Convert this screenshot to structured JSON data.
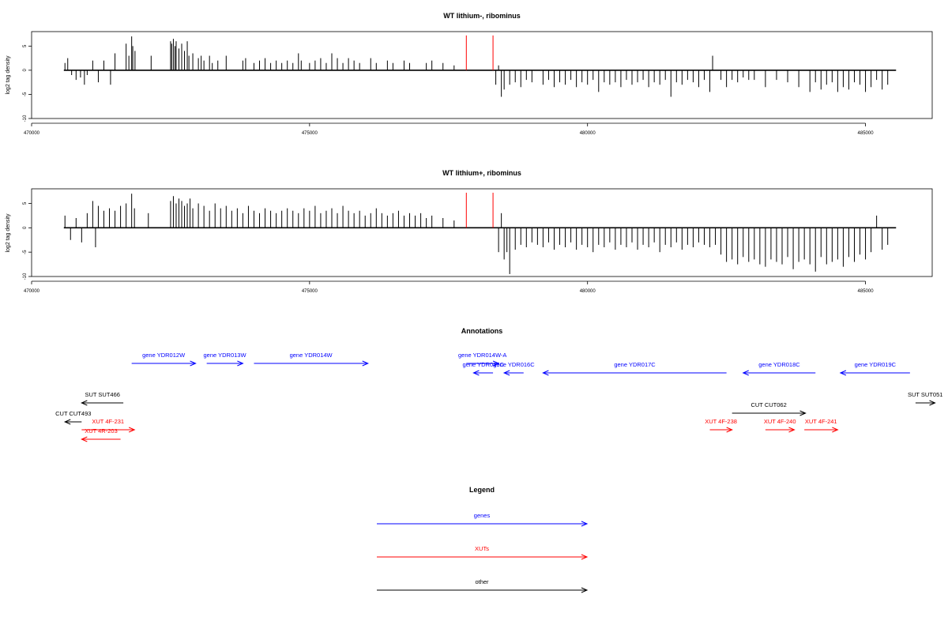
{
  "chart_data": [
    {
      "type": "bar",
      "title": "WT lithium-, ribominus",
      "ylabel": "log2 tag density",
      "ylim": [
        -10,
        8
      ],
      "xlim": [
        470000,
        486200
      ],
      "xticks": [
        470000,
        475000,
        480000,
        485000
      ],
      "yticks": [
        -10,
        -5,
        0,
        5
      ],
      "bar_color": "#000000",
      "highlight_color": "#ff0000",
      "highlight_x": [
        477820,
        478300
      ],
      "highlight_value": 7.2,
      "baseline": [
        470580,
        485550
      ],
      "x": [
        470600,
        470650,
        470720,
        470800,
        470880,
        470950,
        471000,
        471100,
        471200,
        471300,
        471420,
        471500,
        471700,
        471750,
        471800,
        471820,
        471860,
        472150,
        472500,
        472520,
        472550,
        472580,
        472600,
        472650,
        472700,
        472750,
        472800,
        472830,
        472900,
        473000,
        473050,
        473100,
        473200,
        473250,
        473350,
        473500,
        473800,
        473850,
        474000,
        474100,
        474200,
        474300,
        474400,
        474500,
        474600,
        474700,
        474800,
        474850,
        475000,
        475100,
        475200,
        475300,
        475400,
        475500,
        475600,
        475700,
        475800,
        475900,
        476100,
        476200,
        476400,
        476500,
        476700,
        476800,
        477100,
        477200,
        477400,
        477600,
        478350,
        478400,
        478450,
        478500,
        478600,
        478700,
        478800,
        478900,
        479000,
        479200,
        479300,
        479400,
        479500,
        479600,
        479700,
        479800,
        479900,
        480000,
        480100,
        480200,
        480300,
        480400,
        480500,
        480600,
        480700,
        480800,
        480900,
        481000,
        481100,
        481200,
        481300,
        481400,
        481500,
        481600,
        481700,
        481800,
        481900,
        482000,
        482100,
        482200,
        482250,
        482400,
        482500,
        482600,
        482700,
        482800,
        482900,
        483000,
        483200,
        483400,
        483600,
        483800,
        484000,
        484100,
        484200,
        484300,
        484400,
        484500,
        484600,
        484700,
        484800,
        484900,
        485000,
        485100,
        485200,
        485300,
        485400
      ],
      "values": [
        1.5,
        2.5,
        -1.0,
        -2.0,
        -1.5,
        -3.0,
        -1.0,
        2.0,
        -2.5,
        2.0,
        -3.0,
        3.5,
        5.5,
        3.0,
        7.0,
        5.0,
        4.0,
        3.0,
        6.0,
        5.5,
        6.5,
        5.0,
        6.0,
        4.5,
        5.5,
        4.0,
        6.0,
        3.0,
        3.5,
        2.5,
        3.0,
        2.0,
        3.0,
        1.5,
        2.0,
        3.0,
        2.0,
        2.5,
        1.5,
        2.0,
        2.5,
        1.5,
        2.0,
        1.5,
        2.0,
        1.5,
        3.5,
        2.0,
        1.5,
        2.0,
        2.5,
        1.5,
        3.5,
        2.5,
        1.5,
        2.5,
        2.0,
        1.5,
        2.5,
        1.5,
        2.0,
        1.5,
        2.0,
        1.5,
        1.5,
        2.0,
        1.5,
        1.0,
        -3.0,
        1.0,
        -5.5,
        -4.0,
        -3.0,
        -2.5,
        -3.5,
        -2.0,
        -2.5,
        -3.0,
        -2.0,
        -3.5,
        -2.5,
        -3.0,
        -2.0,
        -3.5,
        -2.5,
        -3.0,
        -2.0,
        -4.5,
        -2.5,
        -3.0,
        -2.5,
        -3.5,
        -2.0,
        -3.0,
        -2.5,
        -2.0,
        -3.5,
        -2.5,
        -3.0,
        -2.0,
        -5.5,
        -2.5,
        -3.0,
        -2.0,
        -2.5,
        -3.5,
        -2.0,
        -4.5,
        3.0,
        -2.0,
        -3.5,
        -2.0,
        -2.5,
        -1.5,
        -2.0,
        -2.0,
        -3.5,
        -2.0,
        -2.5,
        -3.5,
        -4.5,
        -2.5,
        -4.0,
        -3.0,
        -2.5,
        -4.5,
        -3.5,
        -4.0,
        -2.5,
        -3.0,
        -4.5,
        -3.5,
        -2.0,
        -4.0,
        -3.0
      ]
    },
    {
      "type": "bar",
      "title": "WT lithium+, ribominus",
      "ylabel": "log2 tag density",
      "ylim": [
        -10,
        8
      ],
      "xlim": [
        470000,
        486200
      ],
      "xticks": [
        470000,
        475000,
        480000,
        485000
      ],
      "yticks": [
        -10,
        -5,
        0,
        5
      ],
      "bar_color": "#000000",
      "highlight_color": "#ff0000",
      "highlight_x": [
        477820,
        478300
      ],
      "highlight_value": 7.2,
      "baseline": [
        470580,
        485550
      ],
      "x": [
        470600,
        470700,
        470800,
        470900,
        471000,
        471100,
        471150,
        471200,
        471300,
        471400,
        471500,
        471600,
        471700,
        471800,
        471850,
        472100,
        472500,
        472550,
        472600,
        472650,
        472700,
        472750,
        472800,
        472850,
        472900,
        473000,
        473100,
        473200,
        473300,
        473400,
        473500,
        473600,
        473700,
        473800,
        473900,
        474000,
        474100,
        474200,
        474300,
        474400,
        474500,
        474600,
        474700,
        474800,
        474900,
        475000,
        475100,
        475200,
        475300,
        475400,
        475500,
        475600,
        475700,
        475800,
        475900,
        476000,
        476100,
        476200,
        476300,
        476400,
        476500,
        476600,
        476700,
        476800,
        476900,
        477000,
        477100,
        477200,
        477400,
        477600,
        478400,
        478450,
        478500,
        478550,
        478600,
        478700,
        478800,
        478900,
        479000,
        479100,
        479200,
        479300,
        479400,
        479500,
        479600,
        479700,
        479800,
        479900,
        480000,
        480100,
        480200,
        480300,
        480400,
        480500,
        480600,
        480700,
        480800,
        480900,
        481000,
        481100,
        481200,
        481300,
        481400,
        481500,
        481600,
        481700,
        481800,
        481900,
        482000,
        482100,
        482200,
        482300,
        482400,
        482500,
        482600,
        482700,
        482800,
        482900,
        483000,
        483100,
        483200,
        483300,
        483400,
        483500,
        483600,
        483700,
        483800,
        483900,
        484000,
        484100,
        484200,
        484300,
        484400,
        484500,
        484600,
        484700,
        484800,
        484900,
        485000,
        485100,
        485200,
        485300,
        485400
      ],
      "values": [
        2.5,
        -2.5,
        2.0,
        -3.0,
        3.0,
        5.5,
        -4.0,
        4.5,
        3.5,
        4.0,
        3.5,
        4.5,
        5.0,
        7.0,
        4.0,
        3.0,
        5.5,
        6.5,
        5.0,
        6.0,
        5.5,
        4.5,
        5.0,
        6.0,
        4.0,
        5.0,
        4.5,
        3.5,
        5.0,
        4.0,
        4.5,
        3.5,
        4.0,
        3.0,
        4.5,
        3.5,
        3.0,
        4.0,
        3.5,
        3.0,
        3.5,
        4.0,
        3.5,
        3.0,
        4.0,
        3.5,
        4.5,
        3.0,
        3.5,
        4.0,
        3.0,
        4.5,
        3.5,
        3.0,
        3.5,
        2.5,
        3.0,
        4.0,
        3.0,
        2.5,
        3.0,
        3.5,
        2.5,
        3.0,
        2.5,
        3.0,
        2.0,
        2.5,
        2.0,
        1.5,
        -5.0,
        3.0,
        -6.5,
        -5.0,
        -9.5,
        -4.5,
        -3.5,
        -4.0,
        -3.0,
        -3.5,
        -4.0,
        -3.0,
        -4.5,
        -3.5,
        -4.0,
        -3.0,
        -4.5,
        -3.5,
        -4.0,
        -5.0,
        -3.5,
        -4.0,
        -3.0,
        -4.5,
        -3.5,
        -4.0,
        -3.0,
        -4.5,
        -3.5,
        -4.0,
        -3.0,
        -5.0,
        -3.5,
        -4.0,
        -3.0,
        -4.5,
        -3.5,
        -4.0,
        -3.0,
        -3.5,
        -4.0,
        -3.5,
        -5.5,
        -7.0,
        -6.5,
        -7.5,
        -6.0,
        -7.0,
        -6.5,
        -7.5,
        -8.0,
        -6.5,
        -7.0,
        -7.5,
        -6.0,
        -8.5,
        -7.0,
        -6.5,
        -7.5,
        -9.0,
        -6.0,
        -7.5,
        -7.0,
        -6.5,
        -8.0,
        -6.0,
        -7.0,
        -5.5,
        -6.5,
        -5.0,
        2.5,
        -4.5,
        -3.5
      ]
    }
  ],
  "annotations": {
    "title": "Annotations",
    "xlim": [
      470000,
      486200
    ],
    "features": [
      {
        "label": "gene YDR012W",
        "x0": 471800,
        "x1": 472950,
        "strand": "+",
        "row": 0,
        "color": "#0000ff"
      },
      {
        "label": "gene YDR013W",
        "x0": 473150,
        "x1": 473800,
        "strand": "+",
        "row": 0,
        "color": "#0000ff"
      },
      {
        "label": "gene YDR014W",
        "x0": 474000,
        "x1": 476050,
        "strand": "+",
        "row": 0,
        "color": "#0000ff"
      },
      {
        "label": "gene YDR014W-A",
        "x0": 477820,
        "x1": 478400,
        "strand": "+",
        "row": 0,
        "color": "#0000ff"
      },
      {
        "label": "gene YDR015C",
        "x0": 477950,
        "x1": 478300,
        "strand": "-",
        "row": 1,
        "color": "#0000ff"
      },
      {
        "label": "gene YDR016C",
        "x0": 478500,
        "x1": 478850,
        "strand": "-",
        "row": 1,
        "color": "#0000ff"
      },
      {
        "label": "gene YDR017C",
        "x0": 479200,
        "x1": 482500,
        "strand": "-",
        "row": 1,
        "color": "#0000ff"
      },
      {
        "label": "gene YDR018C",
        "x0": 482800,
        "x1": 484100,
        "strand": "-",
        "row": 1,
        "color": "#0000ff"
      },
      {
        "label": "gene YDR019C",
        "x0": 484550,
        "x1": 485800,
        "strand": "-",
        "row": 1,
        "color": "#0000ff"
      },
      {
        "label": "SUT SUT466",
        "x0": 470900,
        "x1": 471650,
        "strand": "-",
        "row": 3,
        "color": "#000000"
      },
      {
        "label": "SUT SUT051",
        "x0": 485900,
        "x1": 486250,
        "strand": "+",
        "row": 3,
        "color": "#000000"
      },
      {
        "label": "CUT CUT062",
        "x0": 482600,
        "x1": 483920,
        "strand": "+",
        "row": 5,
        "color": "#000000"
      },
      {
        "label": "CUT CUT493",
        "x0": 470600,
        "x1": 470900,
        "strand": "-",
        "row": 6,
        "color": "#000000"
      },
      {
        "label": "XUT 4F-231",
        "x0": 470900,
        "x1": 471850,
        "strand": "+",
        "row": 7,
        "color": "#ff0000"
      },
      {
        "label": "XUT 4R-203",
        "x0": 470900,
        "x1": 471600,
        "strand": "-",
        "row": 8,
        "color": "#ff0000"
      },
      {
        "label": "XUT 4F-238",
        "x0": 482200,
        "x1": 482600,
        "strand": "+",
        "row": 7,
        "color": "#ff0000"
      },
      {
        "label": "XUT 4F-240",
        "x0": 483200,
        "x1": 483720,
        "strand": "+",
        "row": 7,
        "color": "#ff0000"
      },
      {
        "label": "XUT 4F-241",
        "x0": 483900,
        "x1": 484500,
        "strand": "+",
        "row": 7,
        "color": "#ff0000"
      }
    ]
  },
  "legend": {
    "title": "Legend",
    "items": [
      {
        "label": "genes",
        "color": "#0000ff"
      },
      {
        "label": "XUTs",
        "color": "#ff0000"
      },
      {
        "label": "other",
        "color": "#000000"
      }
    ]
  }
}
